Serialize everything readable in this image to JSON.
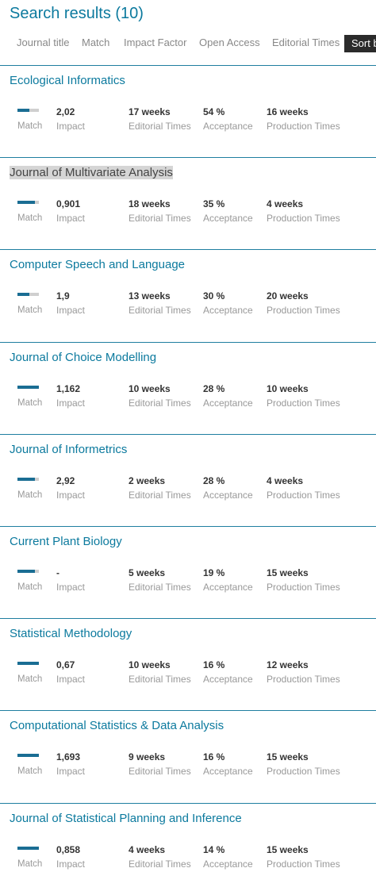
{
  "header": {
    "title": "Search results (10)"
  },
  "sort": {
    "options": [
      "Journal title",
      "Match",
      "Impact Factor",
      "Open Access",
      "Editorial Times"
    ],
    "button": "Sort by"
  },
  "labels": {
    "match": "Match",
    "impact": "Impact",
    "editorial": "Editorial Times",
    "acceptance": "Acceptance",
    "production": "Production Times"
  },
  "results": [
    {
      "title": "Ecological Informatics",
      "match": 0.55,
      "impact": "2,02",
      "editorial": "17 weeks",
      "acceptance": "54 %",
      "production": "16 weeks"
    },
    {
      "title": "Journal of Multivariate Analysis",
      "match": 0.8,
      "impact": "0,901",
      "editorial": "18 weeks",
      "acceptance": "35 %",
      "production": "4 weeks",
      "highlighted": true
    },
    {
      "title": "Computer Speech and Language",
      "match": 0.55,
      "impact": "1,9",
      "editorial": "13 weeks",
      "acceptance": "30 %",
      "production": "20 weeks"
    },
    {
      "title": "Journal of Choice Modelling",
      "match": 1.0,
      "impact": "1,162",
      "editorial": "10 weeks",
      "acceptance": "28 %",
      "production": "10 weeks"
    },
    {
      "title": "Journal of Informetrics",
      "match": 0.8,
      "impact": "2,92",
      "editorial": "2 weeks",
      "acceptance": "28 %",
      "production": "4 weeks"
    },
    {
      "title": "Current Plant Biology",
      "match": 0.8,
      "impact": "-",
      "editorial": "5 weeks",
      "acceptance": "19 %",
      "production": "15 weeks"
    },
    {
      "title": "Statistical Methodology",
      "match": 1.0,
      "impact": "0,67",
      "editorial": "10 weeks",
      "acceptance": "16 %",
      "production": "12 weeks"
    },
    {
      "title": "Computational Statistics & Data Analysis",
      "match": 1.0,
      "impact": "1,693",
      "editorial": "9 weeks",
      "acceptance": "16 %",
      "production": "15 weeks"
    },
    {
      "title": "Journal of Statistical Planning and Inference",
      "match": 1.0,
      "impact": "0,858",
      "editorial": "4 weeks",
      "acceptance": "14 %",
      "production": "15 weeks"
    }
  ]
}
